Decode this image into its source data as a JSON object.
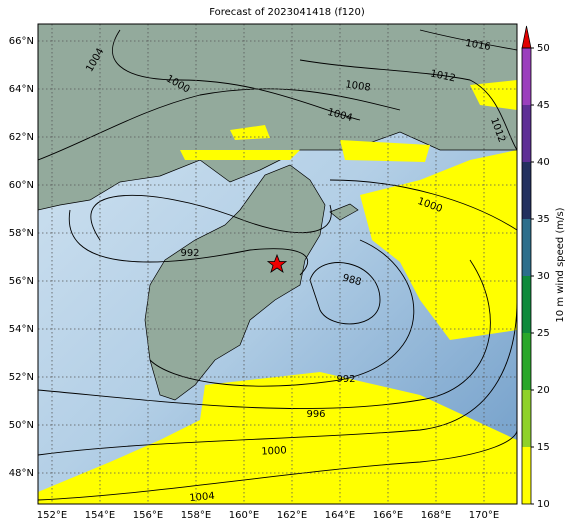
{
  "map": {
    "title": "Forecast of 2023041418 (f120)",
    "lon_ticks": [
      {
        "value": 152,
        "label": "152°E"
      },
      {
        "value": 154,
        "label": "154°E"
      },
      {
        "value": 156,
        "label": "156°E"
      },
      {
        "value": 158,
        "label": "158°E"
      },
      {
        "value": 160,
        "label": "160°E"
      },
      {
        "value": 162,
        "label": "162°E"
      },
      {
        "value": 164,
        "label": "164°E"
      },
      {
        "value": 166,
        "label": "166°E"
      },
      {
        "value": 168,
        "label": "168°E"
      },
      {
        "value": 170,
        "label": "170°E"
      }
    ],
    "lat_ticks": [
      {
        "value": 66,
        "label": "66°N"
      },
      {
        "value": 64,
        "label": "64°N"
      },
      {
        "value": 62,
        "label": "62°N"
      },
      {
        "value": 60,
        "label": "60°N"
      },
      {
        "value": 58,
        "label": "58°N"
      },
      {
        "value": 56,
        "label": "56°N"
      },
      {
        "value": 54,
        "label": "54°N"
      },
      {
        "value": 52,
        "label": "52°N"
      },
      {
        "value": 50,
        "label": "50°N"
      },
      {
        "value": 48,
        "label": "48°N"
      }
    ],
    "contour_labels": [
      "1004",
      "1000",
      "1008",
      "1004",
      "1012",
      "1016",
      "1012",
      "1000",
      "992",
      "988",
      "992",
      "996",
      "1000",
      "1004"
    ],
    "colorbar": {
      "label": "10 m wind speed (m/s)",
      "lim": [
        10,
        50
      ],
      "ticks": [
        10,
        15,
        20,
        25,
        30,
        35,
        40,
        45,
        50
      ],
      "colors": [
        "#ffff00",
        "#8fd12a",
        "#2aa72a",
        "#0f8a3c",
        "#2c6e8c",
        "#23305f",
        "#5e2f95",
        "#9b3fbd"
      ]
    }
  }
}
